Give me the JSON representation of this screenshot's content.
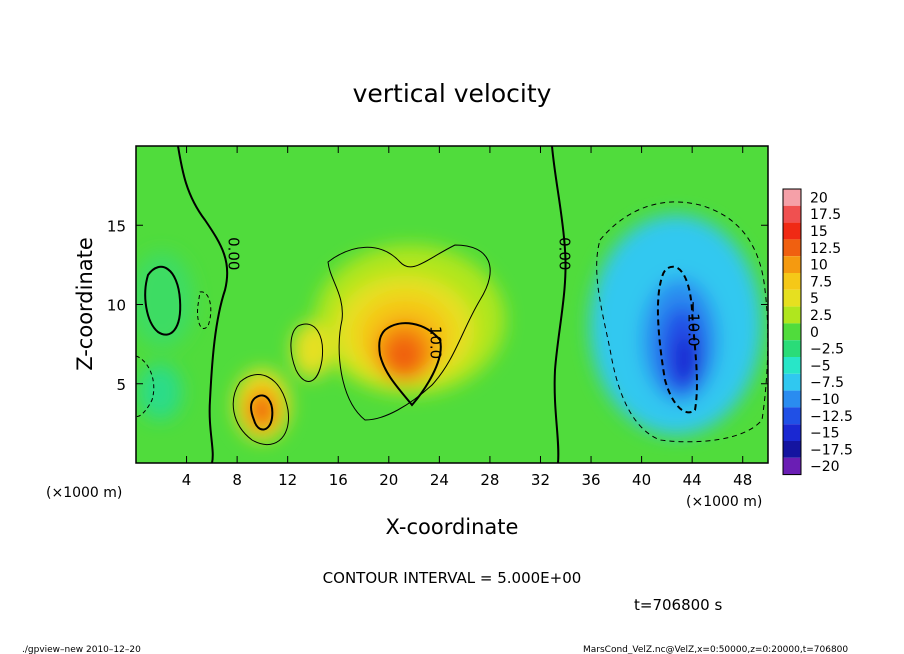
{
  "chart_data": {
    "type": "heatmap",
    "title": "vertical velocity",
    "xlabel": "X-coordinate",
    "ylabel": "Z-coordinate",
    "x_unit_left": "(×1000 m)",
    "x_unit_right": "(×1000 m)",
    "xlim": [
      0,
      50
    ],
    "ylim": [
      0,
      20
    ],
    "x_ticks": [
      4,
      8,
      12,
      16,
      20,
      24,
      28,
      32,
      36,
      40,
      44,
      48
    ],
    "y_ticks": [
      5,
      10,
      15
    ],
    "colorbar": {
      "labels": [
        "20",
        "17.5",
        "15",
        "12.5",
        "10",
        "7.5",
        "5",
        "2.5",
        "0",
        "−2.5",
        "−5",
        "−7.5",
        "−10",
        "−12.5",
        "−15",
        "−17.5",
        "−20"
      ],
      "levels": [
        20,
        17.5,
        15,
        12.5,
        10,
        7.5,
        5,
        2.5,
        0,
        -2.5,
        -5,
        -7.5,
        -10,
        -12.5,
        -15,
        -17.5,
        -20
      ],
      "colors": [
        "#f5a0a8",
        "#f05050",
        "#f02a14",
        "#f06010",
        "#f59a10",
        "#f5c818",
        "#e6e020",
        "#b0e61e",
        "#50dc3c",
        "#2adc78",
        "#28e6c8",
        "#30c8f0",
        "#2a8cf0",
        "#2050e6",
        "#1a28d2",
        "#1414a0",
        "#6a1eb4"
      ]
    },
    "contour_labels": [
      {
        "text": "0.00",
        "x": 7.3,
        "z": 13.2
      },
      {
        "text": "0.00",
        "x": 33.5,
        "z": 13.2
      },
      {
        "text": "10.0",
        "x": 23.3,
        "z": 7.6
      },
      {
        "text": "−10.0",
        "x": 43.7,
        "z": 8.8
      }
    ],
    "features": [
      {
        "kind": "updraft",
        "x": 21.5,
        "z": 7,
        "peak": 13
      },
      {
        "kind": "updraft",
        "x": 10,
        "z": 3.4,
        "peak": 13
      },
      {
        "kind": "downdraft",
        "x": 43.5,
        "z": 6,
        "peak": -14
      }
    ],
    "contour_interval": "CONTOUR INTERVAL = 5.000E+00",
    "time": "t=706800 s"
  },
  "footer": {
    "left": "./gpview–new   2010–12–20",
    "right": "MarsCond_VelZ.nc@VelZ,x=0:50000,z=0:20000,t=706800"
  }
}
